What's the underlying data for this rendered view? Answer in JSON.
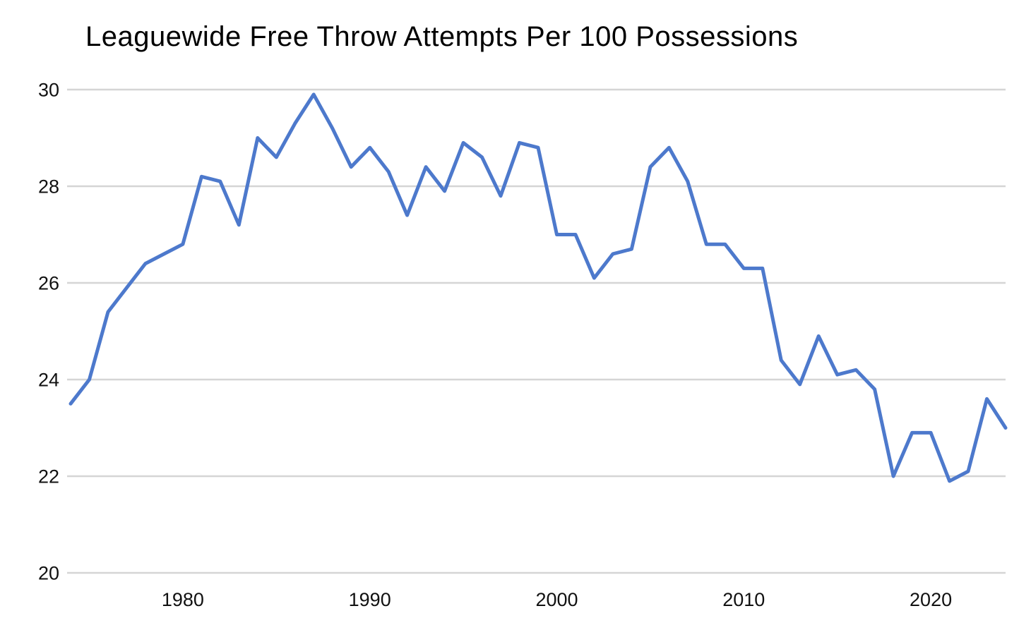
{
  "title": "Leaguewide Free Throw Attempts Per 100 Possessions",
  "chart_data": {
    "type": "line",
    "title": "Leaguewide Free Throw Attempts Per 100 Possessions",
    "series_name": "Leaguewide free throw attempts per 100 possessions",
    "xlabel": "",
    "ylabel": "",
    "xlim": [
      1974,
      2024
    ],
    "ylim": [
      20,
      30
    ],
    "x_ticks": [
      1980,
      1990,
      2000,
      2010,
      2020
    ],
    "y_ticks": [
      20,
      22,
      24,
      26,
      28,
      30
    ],
    "grid": "horizontal",
    "legend": "none",
    "x": [
      1974,
      1975,
      1976,
      1977,
      1978,
      1979,
      1980,
      1981,
      1982,
      1983,
      1984,
      1985,
      1986,
      1987,
      1988,
      1989,
      1990,
      1991,
      1992,
      1993,
      1994,
      1995,
      1996,
      1997,
      1998,
      1999,
      2000,
      2001,
      2002,
      2003,
      2004,
      2005,
      2006,
      2007,
      2008,
      2009,
      2010,
      2011,
      2012,
      2013,
      2014,
      2015,
      2016,
      2017,
      2018,
      2019,
      2020,
      2021,
      2022,
      2023,
      2024
    ],
    "values": [
      23.5,
      24.0,
      25.4,
      25.9,
      26.4,
      26.6,
      26.8,
      28.2,
      28.1,
      27.2,
      29.0,
      28.6,
      29.3,
      29.9,
      29.2,
      28.4,
      28.8,
      28.3,
      27.4,
      28.4,
      27.9,
      28.9,
      28.6,
      27.8,
      28.9,
      28.8,
      27.0,
      27.0,
      26.1,
      26.6,
      26.7,
      28.4,
      28.8,
      28.1,
      26.8,
      26.8,
      26.3,
      26.3,
      24.4,
      23.9,
      24.9,
      24.1,
      24.2,
      23.8,
      22.0,
      22.9,
      22.9,
      21.9,
      22.1,
      23.6,
      23.0
    ],
    "line_color": "#4d79cc",
    "gridline_color": "#d5d5d5",
    "tick_label_color": "#111111",
    "title_color": "#000000",
    "background_color": "#ffffff"
  }
}
